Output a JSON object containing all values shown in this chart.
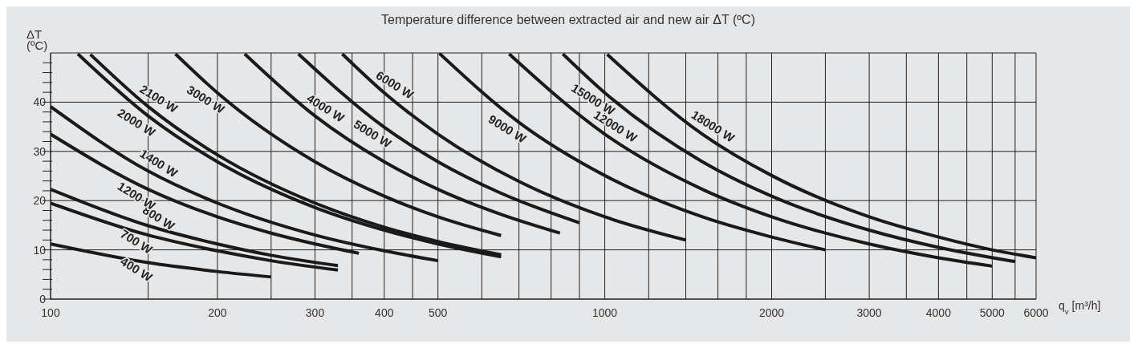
{
  "chart_data": {
    "type": "line",
    "title": "Temperature difference between extracted air and new air ΔT (ºC)",
    "xlabel": "q$_{v}$ [m³/h]",
    "ylabel": "ΔT (ºC)",
    "log": "x",
    "xlim": [
      100,
      6000
    ],
    "ylim": [
      0,
      50
    ],
    "xticks": [
      100,
      {
        "value": 150,
        "label": null
      },
      200,
      {
        "value": 250,
        "label": null
      },
      300,
      {
        "value": 350,
        "label": null
      },
      400,
      {
        "value": 450,
        "label": null
      },
      500,
      {
        "value": 600,
        "label": null
      },
      {
        "value": 700,
        "label": null
      },
      {
        "value": 800,
        "label": null
      },
      {
        "value": 900,
        "label": null
      },
      1000,
      {
        "value": 1200,
        "label": null
      },
      {
        "value": 1400,
        "label": null
      },
      {
        "value": 1600,
        "label": null
      },
      {
        "value": 1800,
        "label": null
      },
      2000,
      {
        "value": 2500,
        "label": null
      },
      3000,
      {
        "value": 3500,
        "label": null
      },
      4000,
      {
        "value": 4500,
        "label": null
      },
      5000,
      {
        "value": 5500,
        "label": null
      },
      6000
    ],
    "yticks": [
      0,
      {
        "value": 2,
        "label": null
      },
      {
        "value": 4,
        "label": null
      },
      {
        "value": 6,
        "label": null
      },
      {
        "value": 8,
        "label": null
      },
      10,
      {
        "value": 12,
        "label": null
      },
      {
        "value": 14,
        "label": null
      },
      {
        "value": 16,
        "label": null
      },
      {
        "value": 18,
        "label": null
      },
      20,
      {
        "value": 22,
        "label": null
      },
      {
        "value": 24,
        "label": null
      },
      {
        "value": 26,
        "label": null
      },
      {
        "value": 28,
        "label": null
      },
      30,
      {
        "value": 32,
        "label": null
      },
      {
        "value": 34,
        "label": null
      },
      {
        "value": 36,
        "label": null
      },
      {
        "value": 38,
        "label": null
      },
      40,
      {
        "value": 42,
        "label": null
      },
      {
        "value": 44,
        "label": null
      },
      {
        "value": 46,
        "label": null
      },
      {
        "value": 48,
        "label": null
      }
    ],
    "grid": true,
    "legend": false,
    "marker": "none",
    "line_style": "solid",
    "series": [
      {
        "name": "400 W",
        "color": "#1a1a1a",
        "x": [
          100,
          150,
          200,
          250
        ],
        "values": [
          11.2,
          7.4,
          5.6,
          4.5
        ]
      },
      {
        "name": "700 W",
        "color": "#1a1a1a",
        "x": [
          100,
          150,
          200,
          250,
          330
        ],
        "values": [
          19.5,
          13.0,
          9.8,
          7.8,
          5.9
        ]
      },
      {
        "name": "800 W",
        "color": "#1a1a1a",
        "x": [
          100,
          150,
          200,
          250,
          330
        ],
        "values": [
          22.3,
          14.9,
          11.2,
          8.9,
          6.8
        ]
      },
      {
        "name": "1200 W",
        "color": "#1a1a1a",
        "x": [
          100,
          150,
          200,
          250,
          300,
          360
        ],
        "values": [
          33.5,
          22.3,
          16.7,
          13.4,
          11.2,
          9.3
        ]
      },
      {
        "name": "1400 W",
        "color": "#1a1a1a",
        "x": [
          100,
          150,
          200,
          300,
          400,
          500
        ],
        "values": [
          39.1,
          26.0,
          19.5,
          13.0,
          9.8,
          7.8
        ]
      },
      {
        "name": "2000 W",
        "color": "#1a1a1a",
        "x": [
          112,
          150,
          200,
          300,
          400,
          500,
          650
        ],
        "values": [
          49.8,
          37.2,
          27.9,
          18.6,
          14.0,
          11.2,
          8.6
        ]
      },
      {
        "name": "2100 W",
        "color": "#1a1a1a",
        "x": [
          118,
          150,
          200,
          300,
          400,
          500,
          650
        ],
        "values": [
          49.7,
          39.1,
          29.3,
          19.5,
          14.6,
          11.7,
          9.0
        ]
      },
      {
        "name": "3000 W",
        "color": "#1a1a1a",
        "x": [
          168,
          200,
          300,
          400,
          500,
          650
        ],
        "values": [
          49.8,
          41.9,
          27.9,
          20.9,
          16.7,
          12.9
        ]
      },
      {
        "name": "4000 W",
        "color": "#1a1a1a",
        "x": [
          224,
          300,
          400,
          500,
          650,
          830
        ],
        "values": [
          49.8,
          37.2,
          27.9,
          22.3,
          17.2,
          13.4
        ]
      },
      {
        "name": "5000 W",
        "color": "#1a1a1a",
        "x": [
          280,
          400,
          500,
          650,
          900
        ],
        "values": [
          49.8,
          34.9,
          27.9,
          21.5,
          15.5
        ]
      },
      {
        "name": "6000 W",
        "color": "#1a1a1a",
        "x": [
          336,
          400,
          500,
          700,
          1000,
          1400
        ],
        "values": [
          49.8,
          41.9,
          33.5,
          23.9,
          16.7,
          12.0
        ]
      },
      {
        "name": "9000 W",
        "color": "#1a1a1a",
        "x": [
          503,
          700,
          1000,
          1500,
          2000,
          2500
        ],
        "values": [
          49.9,
          35.9,
          25.1,
          16.7,
          12.6,
          10.0
        ]
      },
      {
        "name": "12000 W",
        "color": "#1a1a1a",
        "x": [
          672,
          1000,
          1500,
          2000,
          3000,
          4000,
          5000
        ],
        "values": [
          49.8,
          33.5,
          22.3,
          16.7,
          11.2,
          8.4,
          6.7
        ]
      },
      {
        "name": "15000 W",
        "color": "#1a1a1a",
        "x": [
          840,
          1000,
          1500,
          2000,
          3000,
          4000,
          5500
        ],
        "values": [
          49.8,
          41.9,
          27.9,
          20.9,
          14.0,
          10.5,
          7.6
        ]
      },
      {
        "name": "18000 W",
        "color": "#1a1a1a",
        "x": [
          1010,
          1500,
          2000,
          3000,
          4000,
          5000,
          6000
        ],
        "values": [
          49.7,
          33.5,
          25.1,
          16.7,
          12.6,
          10.0,
          8.4
        ]
      }
    ]
  }
}
